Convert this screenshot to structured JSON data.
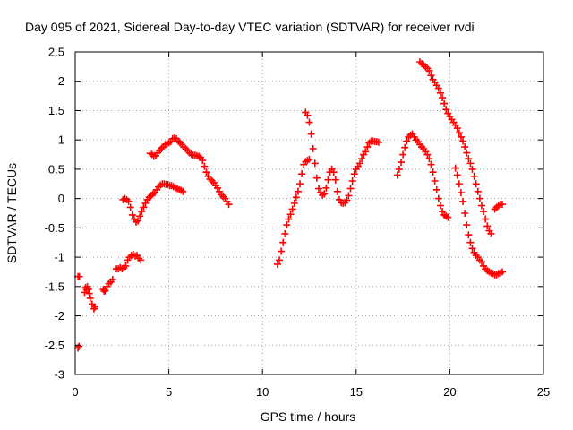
{
  "chart_data": {
    "type": "scatter",
    "title": "Day 095 of 2021, Sidereal Day-to-day VTEC variation (SDTVAR) for receiver rvdi",
    "xlabel": "GPS time / hours",
    "ylabel": "SDTVAR / TECUs",
    "xlim": [
      0,
      25
    ],
    "ylim": [
      -3,
      2.5
    ],
    "xticks": [
      0,
      5,
      10,
      15,
      20,
      25
    ],
    "xtick_labels": [
      "0",
      "5",
      "10",
      "15",
      "20",
      "25"
    ],
    "yticks": [
      2.5,
      2,
      1.5,
      1,
      0.5,
      0,
      -0.5,
      -1,
      -1.5,
      -2,
      -2.5,
      -3
    ],
    "ytick_labels": [
      "2.5",
      "2",
      "1.5",
      "1",
      "0.5",
      "0",
      "-0.5",
      "-1",
      "-1.5",
      "-2",
      "-2.5",
      "-3"
    ],
    "grid": true,
    "marker": "plus",
    "color": "#ff0000",
    "series": [
      {
        "points": [
          [
            0.15,
            -2.55
          ],
          [
            0.2,
            -2.52
          ]
        ]
      },
      {
        "points": [
          [
            0.15,
            -1.33
          ],
          [
            0.22,
            -1.33
          ]
        ]
      },
      {
        "points": [
          [
            0.5,
            -1.6
          ],
          [
            0.55,
            -1.52
          ],
          [
            0.6,
            -1.55
          ],
          [
            0.65,
            -1.5
          ],
          [
            0.7,
            -1.55
          ],
          [
            0.75,
            -1.62
          ],
          [
            0.8,
            -1.7
          ],
          [
            0.9,
            -1.8
          ],
          [
            1.0,
            -1.88
          ],
          [
            1.05,
            -1.85
          ]
        ]
      },
      {
        "points": [
          [
            1.5,
            -1.55
          ],
          [
            1.55,
            -1.58
          ],
          [
            1.6,
            -1.57
          ],
          [
            1.7,
            -1.5
          ],
          [
            1.8,
            -1.45
          ],
          [
            1.9,
            -1.42
          ],
          [
            2.0,
            -1.38
          ]
        ]
      },
      {
        "points": [
          [
            2.2,
            -1.2
          ],
          [
            2.3,
            -1.2
          ],
          [
            2.4,
            -1.18
          ],
          [
            2.5,
            -1.2
          ],
          [
            2.6,
            -1.18
          ],
          [
            2.7,
            -1.15
          ]
        ]
      },
      {
        "points": [
          [
            2.8,
            -1.05
          ],
          [
            2.9,
            -1.0
          ],
          [
            3.0,
            -0.97
          ],
          [
            3.1,
            -0.95
          ],
          [
            3.2,
            -0.98
          ],
          [
            3.3,
            -0.97
          ],
          [
            3.4,
            -1.02
          ],
          [
            3.5,
            -1.05
          ]
        ]
      },
      {
        "points": [
          [
            2.55,
            -0.02
          ],
          [
            2.65,
            0.0
          ],
          [
            2.75,
            -0.02
          ],
          [
            2.85,
            -0.05
          ],
          [
            2.95,
            -0.15
          ],
          [
            3.05,
            -0.28
          ],
          [
            3.15,
            -0.35
          ],
          [
            3.25,
            -0.4
          ],
          [
            3.35,
            -0.38
          ],
          [
            3.45,
            -0.3
          ],
          [
            3.55,
            -0.22
          ],
          [
            3.65,
            -0.15
          ],
          [
            3.75,
            -0.08
          ],
          [
            3.85,
            -0.02
          ],
          [
            3.95,
            0.02
          ],
          [
            4.05,
            0.05
          ],
          [
            4.15,
            0.08
          ],
          [
            4.25,
            0.1
          ],
          [
            4.35,
            0.15
          ],
          [
            4.45,
            0.2
          ],
          [
            4.55,
            0.23
          ],
          [
            4.65,
            0.25
          ],
          [
            4.75,
            0.25
          ],
          [
            4.85,
            0.24
          ],
          [
            4.95,
            0.24
          ],
          [
            5.05,
            0.22
          ],
          [
            5.15,
            0.22
          ],
          [
            5.25,
            0.2
          ],
          [
            5.35,
            0.18
          ],
          [
            5.45,
            0.17
          ],
          [
            5.55,
            0.15
          ],
          [
            5.65,
            0.14
          ],
          [
            5.75,
            0.12
          ]
        ]
      },
      {
        "points": [
          [
            4.0,
            0.77
          ],
          [
            4.1,
            0.75
          ],
          [
            4.2,
            0.72
          ],
          [
            4.3,
            0.73
          ],
          [
            4.4,
            0.78
          ],
          [
            4.5,
            0.82
          ],
          [
            4.6,
            0.85
          ],
          [
            4.7,
            0.88
          ],
          [
            4.8,
            0.92
          ],
          [
            4.9,
            0.93
          ],
          [
            5.0,
            0.95
          ],
          [
            5.1,
            0.97
          ],
          [
            5.2,
            1.02
          ],
          [
            5.3,
            1.03
          ],
          [
            5.4,
            1.02
          ],
          [
            5.5,
            0.98
          ],
          [
            5.6,
            0.95
          ],
          [
            5.7,
            0.92
          ],
          [
            5.8,
            0.88
          ],
          [
            5.9,
            0.85
          ],
          [
            6.0,
            0.82
          ],
          [
            6.1,
            0.78
          ],
          [
            6.2,
            0.75
          ],
          [
            6.3,
            0.74
          ],
          [
            6.4,
            0.74
          ],
          [
            6.5,
            0.73
          ],
          [
            6.6,
            0.72
          ],
          [
            6.7,
            0.7
          ],
          [
            6.8,
            0.65
          ],
          [
            6.9,
            0.55
          ],
          [
            7.0,
            0.45
          ],
          [
            7.1,
            0.38
          ],
          [
            7.2,
            0.33
          ],
          [
            7.3,
            0.3
          ],
          [
            7.4,
            0.27
          ],
          [
            7.5,
            0.22
          ],
          [
            7.6,
            0.18
          ],
          [
            7.7,
            0.12
          ],
          [
            7.8,
            0.06
          ],
          [
            7.9,
            0.03
          ],
          [
            8.0,
            0.0
          ],
          [
            8.1,
            -0.05
          ],
          [
            8.2,
            -0.1
          ]
        ]
      },
      {
        "points": [
          [
            10.8,
            -1.12
          ],
          [
            10.9,
            -1.05
          ],
          [
            11.0,
            -0.9
          ],
          [
            11.1,
            -0.75
          ],
          [
            11.2,
            -0.6
          ],
          [
            11.3,
            -0.45
          ],
          [
            11.4,
            -0.35
          ],
          [
            11.5,
            -0.27
          ],
          [
            11.6,
            -0.18
          ],
          [
            11.7,
            -0.08
          ],
          [
            11.8,
            0.02
          ],
          [
            11.9,
            0.12
          ],
          [
            12.0,
            0.25
          ],
          [
            12.1,
            0.42
          ],
          [
            12.2,
            0.58
          ],
          [
            12.3,
            0.63
          ],
          [
            12.4,
            0.65
          ],
          [
            12.5,
            0.67
          ]
        ]
      },
      {
        "points": [
          [
            12.3,
            1.47
          ],
          [
            12.4,
            1.42
          ],
          [
            12.5,
            1.3
          ],
          [
            12.6,
            1.1
          ],
          [
            12.7,
            0.85
          ],
          [
            12.8,
            0.6
          ],
          [
            12.9,
            0.35
          ],
          [
            13.0,
            0.17
          ],
          [
            13.1,
            0.1
          ],
          [
            13.2,
            0.06
          ],
          [
            13.3,
            0.08
          ],
          [
            13.4,
            0.18
          ],
          [
            13.5,
            0.32
          ],
          [
            13.6,
            0.45
          ],
          [
            13.7,
            0.5
          ],
          [
            13.8,
            0.45
          ],
          [
            13.9,
            0.32
          ],
          [
            14.0,
            0.12
          ],
          [
            14.1,
            -0.02
          ],
          [
            14.2,
            -0.07
          ],
          [
            14.3,
            -0.08
          ],
          [
            14.4,
            -0.07
          ],
          [
            14.5,
            -0.03
          ],
          [
            14.6,
            0.05
          ],
          [
            14.7,
            0.17
          ],
          [
            14.8,
            0.3
          ],
          [
            14.9,
            0.42
          ],
          [
            15.0,
            0.5
          ],
          [
            15.1,
            0.55
          ],
          [
            15.2,
            0.6
          ],
          [
            15.3,
            0.68
          ],
          [
            15.4,
            0.75
          ],
          [
            15.5,
            0.8
          ],
          [
            15.6,
            0.88
          ],
          [
            15.7,
            0.95
          ],
          [
            15.8,
            0.98
          ],
          [
            15.9,
            0.98
          ],
          [
            16.0,
            0.97
          ],
          [
            16.1,
            0.97
          ],
          [
            16.2,
            0.96
          ]
        ]
      },
      {
        "points": [
          [
            17.2,
            0.4
          ],
          [
            17.3,
            0.5
          ],
          [
            17.4,
            0.62
          ],
          [
            17.5,
            0.75
          ],
          [
            17.6,
            0.87
          ],
          [
            17.7,
            0.98
          ],
          [
            17.8,
            1.05
          ],
          [
            17.9,
            1.08
          ],
          [
            18.0,
            1.1
          ],
          [
            18.1,
            1.05
          ],
          [
            18.2,
            1.0
          ],
          [
            18.3,
            0.97
          ],
          [
            18.4,
            0.92
          ],
          [
            18.5,
            0.88
          ],
          [
            18.6,
            0.85
          ],
          [
            18.7,
            0.8
          ],
          [
            18.8,
            0.75
          ],
          [
            18.9,
            0.68
          ],
          [
            19.0,
            0.58
          ],
          [
            19.1,
            0.45
          ],
          [
            19.2,
            0.3
          ],
          [
            19.3,
            0.15
          ],
          [
            19.4,
            0.0
          ],
          [
            19.5,
            -0.12
          ],
          [
            19.6,
            -0.22
          ],
          [
            19.7,
            -0.28
          ],
          [
            19.8,
            -0.3
          ],
          [
            19.9,
            -0.32
          ]
        ]
      },
      {
        "points": [
          [
            18.4,
            2.33
          ],
          [
            18.5,
            2.3
          ],
          [
            18.6,
            2.28
          ],
          [
            18.7,
            2.25
          ],
          [
            18.8,
            2.22
          ],
          [
            18.9,
            2.18
          ],
          [
            19.0,
            2.1
          ],
          [
            19.1,
            2.03
          ],
          [
            19.2,
            1.98
          ],
          [
            19.3,
            1.93
          ],
          [
            19.4,
            1.88
          ],
          [
            19.5,
            1.8
          ],
          [
            19.6,
            1.72
          ],
          [
            19.7,
            1.62
          ],
          [
            19.8,
            1.52
          ],
          [
            19.9,
            1.45
          ],
          [
            20.0,
            1.4
          ],
          [
            20.1,
            1.35
          ],
          [
            20.2,
            1.3
          ],
          [
            20.3,
            1.25
          ],
          [
            20.4,
            1.2
          ],
          [
            20.5,
            1.12
          ],
          [
            20.6,
            1.05
          ],
          [
            20.7,
            0.98
          ],
          [
            20.8,
            0.88
          ],
          [
            20.9,
            0.78
          ],
          [
            21.0,
            0.68
          ],
          [
            21.1,
            0.6
          ],
          [
            21.2,
            0.5
          ],
          [
            21.3,
            0.38
          ],
          [
            21.4,
            0.25
          ],
          [
            21.5,
            0.12
          ],
          [
            21.6,
            0.0
          ],
          [
            21.7,
            -0.12
          ],
          [
            21.8,
            -0.22
          ],
          [
            21.9,
            -0.35
          ],
          [
            22.0,
            -0.47
          ],
          [
            22.1,
            -0.55
          ],
          [
            22.2,
            -0.6
          ]
        ]
      },
      {
        "points": [
          [
            20.3,
            0.52
          ],
          [
            20.4,
            0.4
          ],
          [
            20.5,
            0.25
          ],
          [
            20.6,
            0.1
          ],
          [
            20.7,
            -0.05
          ],
          [
            20.8,
            -0.25
          ],
          [
            20.9,
            -0.45
          ],
          [
            21.0,
            -0.62
          ],
          [
            21.1,
            -0.75
          ],
          [
            21.2,
            -0.85
          ],
          [
            21.3,
            -0.92
          ],
          [
            21.4,
            -0.97
          ],
          [
            21.5,
            -1.0
          ],
          [
            21.6,
            -1.05
          ],
          [
            21.7,
            -1.08
          ],
          [
            21.8,
            -1.15
          ],
          [
            21.9,
            -1.2
          ],
          [
            22.0,
            -1.23
          ],
          [
            22.1,
            -1.25
          ],
          [
            22.2,
            -1.27
          ],
          [
            22.3,
            -1.28
          ],
          [
            22.4,
            -1.3
          ],
          [
            22.5,
            -1.3
          ],
          [
            22.6,
            -1.28
          ],
          [
            22.7,
            -1.27
          ],
          [
            22.8,
            -1.25
          ]
        ]
      },
      {
        "points": [
          [
            22.4,
            -0.18
          ],
          [
            22.5,
            -0.15
          ],
          [
            22.6,
            -0.12
          ],
          [
            22.7,
            -0.1
          ],
          [
            22.8,
            -0.1
          ]
        ]
      }
    ]
  }
}
